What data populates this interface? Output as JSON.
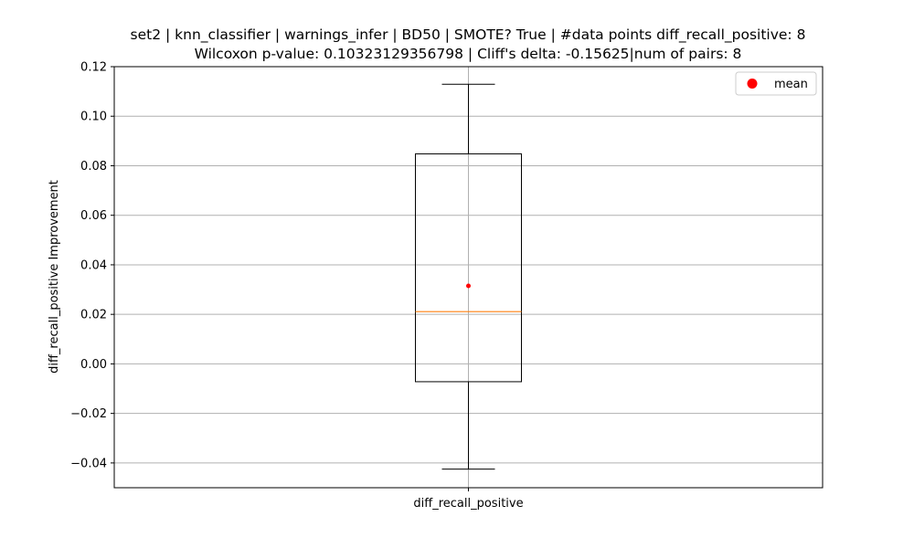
{
  "chart_data": {
    "type": "box",
    "title": "set2 | knn_classifier | warnings_infer | BD50 | SMOTE? True | #data points diff_recall_positive: 8",
    "subtitle": "Wilcoxon p-value: 0.10323129356798 | Cliff's delta: -0.15625|num of pairs: 8",
    "xlabel": "",
    "ylabel": "diff_recall_positive Improvement",
    "categories": [
      "diff_recall_positive"
    ],
    "ylim": [
      -0.05,
      0.12
    ],
    "yticks": [
      -0.04,
      -0.02,
      0.0,
      0.02,
      0.04,
      0.06,
      0.08,
      0.1,
      0.12
    ],
    "ytick_labels": [
      "−0.04",
      "−0.02",
      "0.00",
      "0.02",
      "0.04",
      "0.06",
      "0.08",
      "0.10",
      "0.12"
    ],
    "grid": true,
    "legend": {
      "placement": "top-right",
      "entries": [
        {
          "label": "mean",
          "marker": "circle",
          "color": "#ff0000"
        }
      ]
    },
    "boxes": [
      {
        "category": "diff_recall_positive",
        "whisker_low": -0.0425,
        "q1": -0.0072,
        "median": 0.0211,
        "q3": 0.0848,
        "whisker_high": 0.1129,
        "mean": 0.0315
      }
    ],
    "colors": {
      "box": "#000000",
      "median": "#ff7f0e",
      "mean": "#ff0000",
      "grid": "#b0b0b0"
    }
  }
}
